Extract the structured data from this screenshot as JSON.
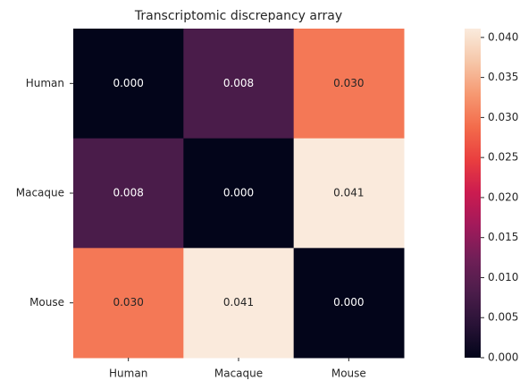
{
  "chart_data": {
    "type": "heatmap",
    "title": "Transcriptomic discrepancy array",
    "xcategories": [
      "Human",
      "Macaque",
      "Mouse"
    ],
    "ycategories": [
      "Human",
      "Macaque",
      "Mouse"
    ],
    "values": [
      [
        0,
        0.008,
        0.03
      ],
      [
        0.008,
        0,
        0.041
      ],
      [
        0.03,
        0.041,
        0
      ]
    ],
    "value_labels": [
      [
        "0.000",
        "0.008",
        "0.030"
      ],
      [
        "0.008",
        "0.000",
        "0.041"
      ],
      [
        "0.030",
        "0.041",
        "0.000"
      ]
    ],
    "colormap": "rocket",
    "clim": [
      0,
      0.0411
    ],
    "cticks": [
      {
        "value": 0,
        "label": "0.000"
      },
      0.005,
      {
        "value": 0.01,
        "label": "0.010"
      },
      0.015,
      {
        "value": 0.02,
        "label": "0.020"
      },
      0.025,
      {
        "value": 0.03,
        "label": "0.030"
      },
      0.035,
      {
        "value": 0.04,
        "label": "0.040"
      }
    ]
  }
}
